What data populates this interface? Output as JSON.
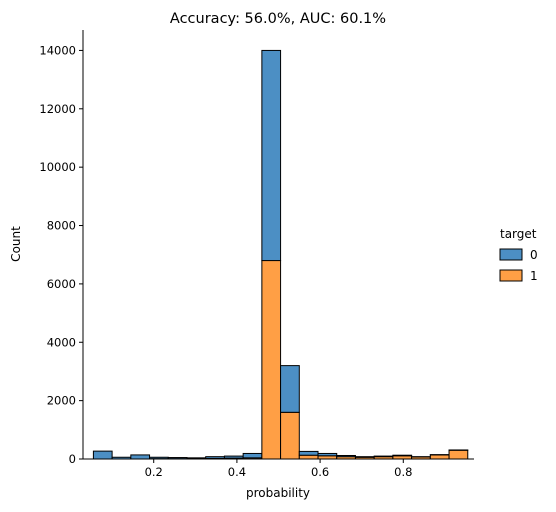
{
  "chart_data": {
    "type": "bar",
    "stacked": true,
    "title": "Accuracy: 56.0%, AUC: 60.1%",
    "xlabel": "probability",
    "ylabel": "Count",
    "xlim": [
      0.03,
      0.97
    ],
    "ylim": [
      0,
      14700
    ],
    "xticks": [
      0.2,
      0.4,
      0.6,
      0.8
    ],
    "xtick_labels": [
      "0.2",
      "0.4",
      "0.6",
      "0.8"
    ],
    "yticks": [
      0,
      2000,
      4000,
      6000,
      8000,
      10000,
      12000,
      14000
    ],
    "ytick_labels": [
      "0",
      "2000",
      "4000",
      "6000",
      "8000",
      "10000",
      "12000",
      "14000"
    ],
    "grid": false,
    "legend": {
      "title": "target",
      "position": "right",
      "entries": [
        "0",
        "1"
      ]
    },
    "bin_edges": [
      0.055,
      0.1,
      0.145,
      0.19,
      0.235,
      0.28,
      0.325,
      0.37,
      0.415,
      0.46,
      0.505,
      0.55,
      0.595,
      0.64,
      0.685,
      0.73,
      0.775,
      0.82,
      0.865,
      0.91,
      0.955
    ],
    "series": [
      {
        "name": "0",
        "color": "#4c8fc4",
        "values": [
          270,
          60,
          140,
          50,
          40,
          30,
          60,
          70,
          150,
          7200,
          1600,
          130,
          80,
          40,
          20,
          20,
          20,
          10,
          10,
          10
        ]
      },
      {
        "name": "1",
        "color": "#ff9f45",
        "values": [
          0,
          0,
          0,
          10,
          10,
          10,
          20,
          30,
          40,
          6800,
          1600,
          130,
          110,
          80,
          60,
          80,
          110,
          70,
          140,
          300
        ]
      }
    ]
  }
}
